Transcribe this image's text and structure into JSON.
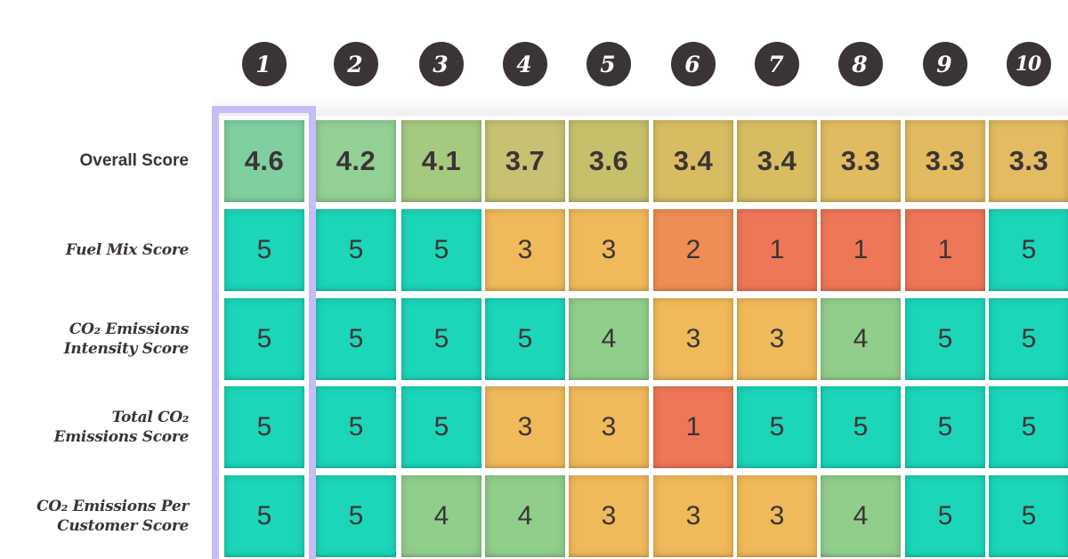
{
  "colors": {
    "rank_circle": "#3b3436",
    "highlight": "#c6bcf7",
    "text": "#3b3436",
    "score_5": "#1bd6b8",
    "score_4": "#91ce8c",
    "score_3": "#f0b95a",
    "score_2": "#ee8e55",
    "score_1": "#ee7757"
  },
  "chart_data": {
    "type": "table",
    "highlighted_rank": 1,
    "ranks": [
      "1",
      "2",
      "3",
      "4",
      "5",
      "6",
      "7",
      "8",
      "9",
      "10"
    ],
    "rows": [
      {
        "label_lines": [
          "Overall Score"
        ],
        "style": "overall",
        "values": [
          "4.6",
          "4.2",
          "4.1",
          "3.7",
          "3.6",
          "3.4",
          "3.4",
          "3.3",
          "3.3",
          "3.3"
        ],
        "colors": [
          "#7fcfa0",
          "#92d095",
          "#a5c980",
          "#c7c171",
          "#c6c06a",
          "#d8bc62",
          "#d7bc62",
          "#e0bb60",
          "#e2bb60",
          "#e4bb60"
        ]
      },
      {
        "label_lines": [
          "Fuel Mix Score"
        ],
        "style": "sub",
        "values": [
          "5",
          "5",
          "5",
          "3",
          "3",
          "2",
          "1",
          "1",
          "1",
          "5"
        ],
        "colors": [
          "#1bd6b8",
          "#1bd6b8",
          "#1bd6b8",
          "#f0b95a",
          "#f0b95a",
          "#ee8e55",
          "#ee7757",
          "#ee7757",
          "#ee7757",
          "#1bd6b8"
        ]
      },
      {
        "label_lines": [
          "CO₂ Emissions",
          "Intensity Score"
        ],
        "style": "sub",
        "values": [
          "5",
          "5",
          "5",
          "5",
          "4",
          "3",
          "3",
          "4",
          "5",
          "5"
        ],
        "colors": [
          "#1bd6b8",
          "#1bd6b8",
          "#1bd6b8",
          "#1bd6b8",
          "#91ce8c",
          "#f0b95a",
          "#f0b95a",
          "#91ce8c",
          "#1bd6b8",
          "#1bd6b8"
        ]
      },
      {
        "label_lines": [
          "Total CO₂",
          "Emissions Score"
        ],
        "style": "sub",
        "values": [
          "5",
          "5",
          "5",
          "3",
          "3",
          "1",
          "5",
          "5",
          "5",
          "5"
        ],
        "colors": [
          "#1bd6b8",
          "#1bd6b8",
          "#1bd6b8",
          "#f0b95a",
          "#f0b95a",
          "#ee7757",
          "#1bd6b8",
          "#1bd6b8",
          "#1bd6b8",
          "#1bd6b8"
        ]
      },
      {
        "label_lines": [
          "CO₂ Emissions Per",
          "Customer Score"
        ],
        "style": "sub",
        "values": [
          "5",
          "5",
          "4",
          "4",
          "3",
          "3",
          "3",
          "4",
          "5",
          "5"
        ],
        "colors": [
          "#1bd6b8",
          "#1bd6b8",
          "#91ce8c",
          "#91ce8c",
          "#f0b95a",
          "#f0b95a",
          "#f0b95a",
          "#91ce8c",
          "#1bd6b8",
          "#1bd6b8"
        ]
      }
    ]
  }
}
